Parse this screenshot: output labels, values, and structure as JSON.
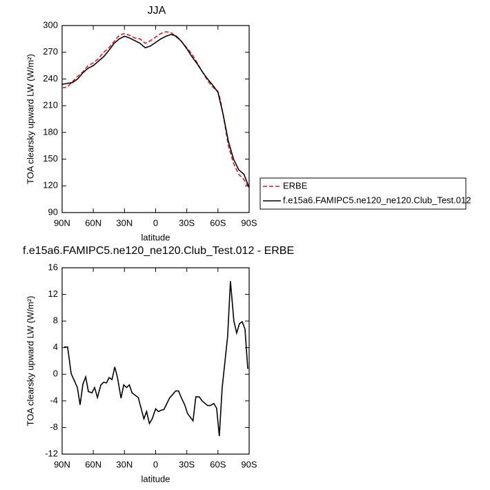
{
  "chart_data": [
    {
      "type": "line",
      "title": "JJA",
      "xlabel": "latitude",
      "ylabel": "TOA clearsky upward LW (W/m²)",
      "x": [
        90,
        85,
        80,
        75,
        70,
        65,
        60,
        55,
        50,
        45,
        40,
        35,
        30,
        25,
        20,
        15,
        10,
        5,
        0,
        -5,
        -10,
        -15,
        -20,
        -25,
        -30,
        -35,
        -40,
        -45,
        -50,
        -55,
        -60,
        -62,
        -65,
        -70,
        -75,
        -80,
        -85,
        -90
      ],
      "series": [
        {
          "name": "ERBE",
          "color": "#e41a1c",
          "line_style": "dashed",
          "values": [
            230,
            231,
            237,
            243,
            248,
            255,
            258,
            263,
            270,
            275,
            282,
            289,
            291,
            289,
            286,
            285,
            280,
            283,
            287,
            291,
            293,
            292,
            287,
            282,
            275,
            268,
            258,
            248,
            238,
            231,
            226,
            218,
            200,
            165,
            145,
            133,
            127,
            117
          ]
        },
        {
          "name": "f.e15a6.FAMIPC5.ne120_ne120.Club_Test.012",
          "color": "#000000",
          "line_style": "solid",
          "values": [
            234,
            235,
            236,
            240,
            247,
            252,
            255,
            260,
            265,
            272,
            280,
            285,
            288,
            286,
            283,
            280,
            275,
            277,
            281,
            285,
            288,
            290,
            288,
            282,
            274,
            265,
            257,
            248,
            240,
            233,
            225,
            215,
            200,
            170,
            150,
            138,
            133,
            118
          ]
        }
      ],
      "xlim": [
        90,
        -90
      ],
      "xticks": [
        {
          "value": 90,
          "label": "90N"
        },
        {
          "value": 60,
          "label": "60N"
        },
        {
          "value": 30,
          "label": "30N"
        },
        0,
        {
          "value": -30,
          "label": "30S"
        },
        {
          "value": -60,
          "label": "60S"
        },
        {
          "value": -90,
          "label": "90S"
        }
      ],
      "ylim": [
        90,
        300
      ],
      "yticks": [
        90,
        120,
        150,
        180,
        210,
        240,
        270,
        300
      ],
      "legend": "right"
    },
    {
      "type": "line",
      "title": "f.e15a6.FAMIPC5.ne120_ne120.Club_Test.012 - ERBE",
      "xlabel": "latitude",
      "ylabel": "TOA clearsky upward LW (W/m²)",
      "color": "#000000",
      "x": [
        88,
        84.7,
        81.3,
        75.3,
        72.7,
        70,
        67.3,
        64.7,
        61.3,
        58.7,
        56,
        52.7,
        50,
        47.3,
        44.7,
        42,
        39.3,
        36.7,
        33.3,
        30.7,
        28,
        25.3,
        22.7,
        16.7,
        11.3,
        8.7,
        6,
        3.3,
        0,
        -2.7,
        -5.3,
        -8,
        -13.3,
        -19.3,
        -22,
        -24.7,
        -28,
        -30.7,
        -36,
        -38.7,
        -42,
        -44.7,
        -50,
        -52.7,
        -56,
        -58.7,
        -61.3,
        -64,
        -69.3,
        -72,
        -75.3,
        -78,
        -80.7,
        -83.3,
        -86,
        -88.7
      ],
      "values": [
        4.1,
        4.1,
        0.1,
        -2.0,
        -4.6,
        -1.5,
        -0.4,
        -2.6,
        -2.8,
        -2.0,
        -3.5,
        -1.6,
        -1.2,
        -1.3,
        -0.5,
        -0.8,
        1.1,
        -0.5,
        -3.6,
        -1.6,
        -2.0,
        -1.6,
        -2.8,
        -3.5,
        -6.7,
        -5.6,
        -7.4,
        -6.7,
        -5.2,
        -5.6,
        -5.4,
        -5.3,
        -3.6,
        -2.5,
        -2.5,
        -3.5,
        -4.6,
        -5.9,
        -7.0,
        -3.4,
        -3.4,
        -4.0,
        -4.7,
        -4.7,
        -4.4,
        -5.1,
        -9.3,
        -2.1,
        5.7,
        14.0,
        8.0,
        6.2,
        7.6,
        7.9,
        6.8,
        0.8
      ],
      "xlim": [
        90,
        -90
      ],
      "xticks": [
        {
          "value": 90,
          "label": "90N"
        },
        {
          "value": 60,
          "label": "60N"
        },
        {
          "value": 30,
          "label": "30N"
        },
        0,
        {
          "value": -30,
          "label": "30S"
        },
        {
          "value": -60,
          "label": "60S"
        },
        {
          "value": -90,
          "label": "90S"
        }
      ],
      "ylim": [
        -12,
        16
      ],
      "yticks": [
        -12,
        -8,
        -4,
        0,
        4,
        8,
        12,
        16
      ]
    }
  ]
}
